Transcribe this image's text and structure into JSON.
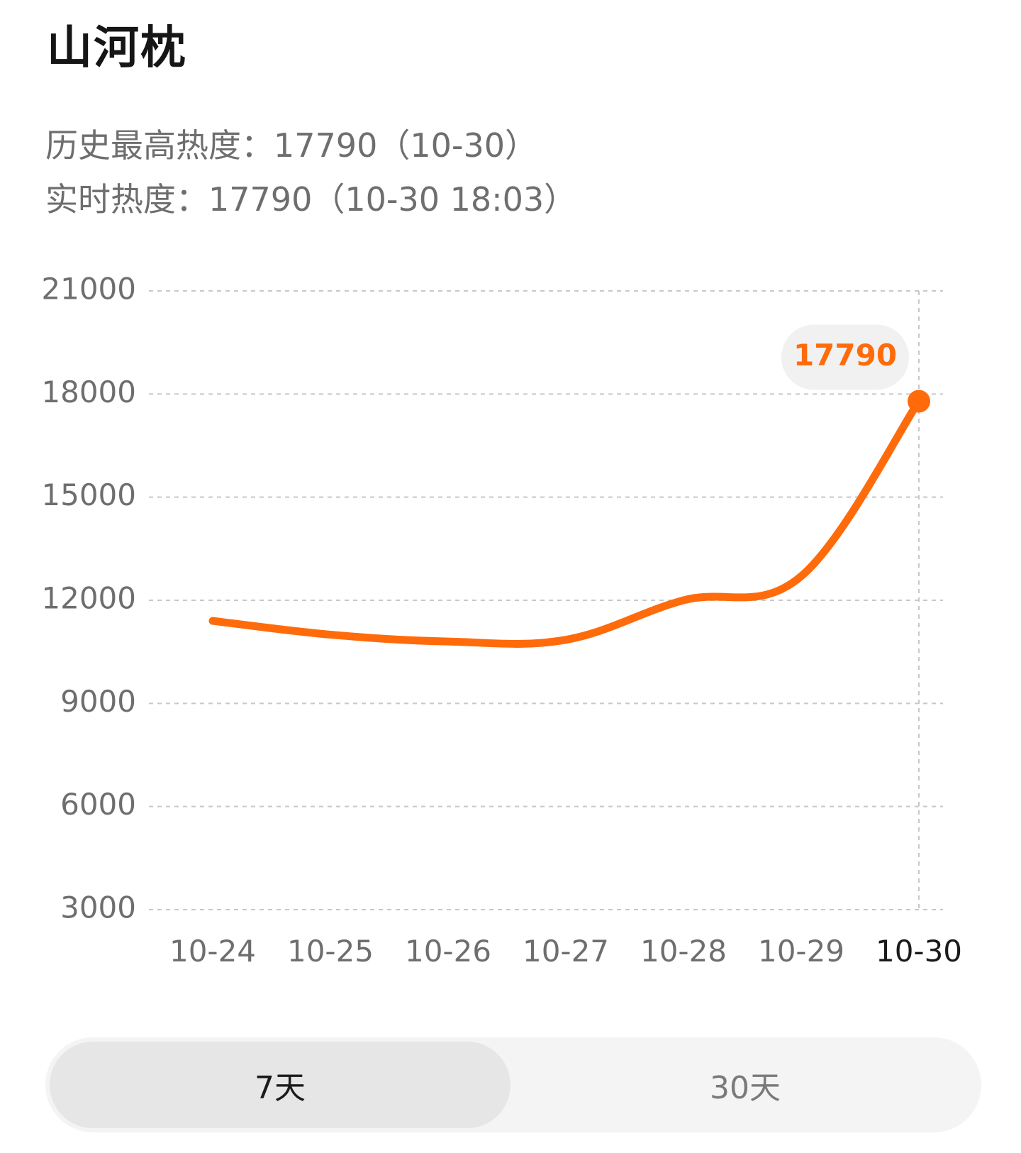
{
  "header": {
    "title": "山河枕",
    "peak_label": "历史最高热度：17790（10-30）",
    "realtime_label": "实时热度：17790（10-30 18:03）"
  },
  "tooltip": {
    "value": "17790"
  },
  "range_toggle": {
    "options": [
      "7天",
      "30天"
    ],
    "selected": "7天"
  },
  "colors": {
    "line": "#ff6b0a",
    "tooltip_bg": "#f1f1f1",
    "grid": "#c8c8c8",
    "axis_text": "#6e6e6e",
    "axis_text_active": "#1a1a1a"
  },
  "chart_data": {
    "type": "line",
    "title": "",
    "xlabel": "",
    "ylabel": "",
    "categories": [
      "10-24",
      "10-25",
      "10-26",
      "10-27",
      "10-28",
      "10-29",
      "10-30"
    ],
    "series": [
      {
        "name": "",
        "values": [
          11400,
          11000,
          10800,
          10850,
          12000,
          12700,
          17790
        ]
      }
    ],
    "ylim": [
      3000,
      21000
    ],
    "yticks": [
      21000,
      18000,
      15000,
      12000,
      9000,
      6000,
      3000
    ],
    "highlight": {
      "category": "10-30",
      "value": 17790
    },
    "grid": true,
    "grid_style": "dashed",
    "legend": "none"
  }
}
